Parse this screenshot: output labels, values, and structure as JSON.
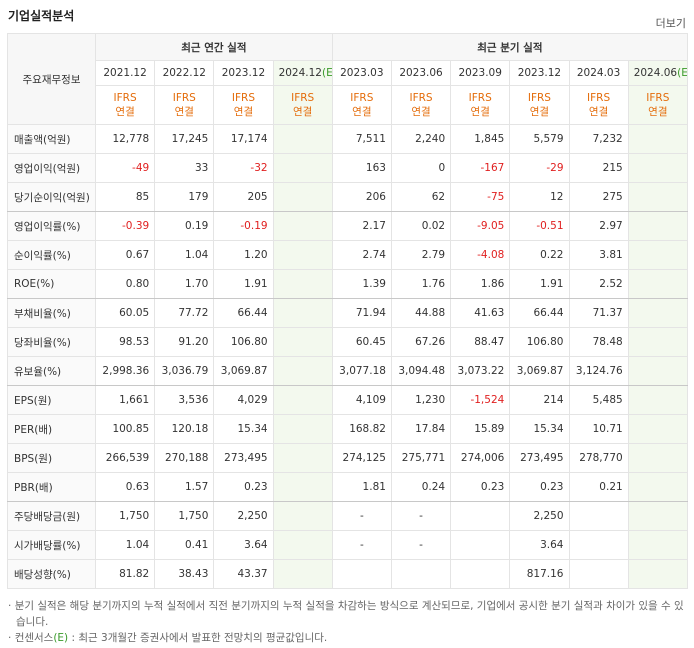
{
  "header": {
    "title": "기업실적분석",
    "more": "더보기"
  },
  "table": {
    "corner": "주요재무정보",
    "groups": [
      {
        "label": "최근 연간 실적",
        "span": 4
      },
      {
        "label": "최근 분기 실적",
        "span": 6
      }
    ],
    "estimate_mark": "(E)",
    "periods": [
      {
        "date": "2021.12"
      },
      {
        "date": "2022.12"
      },
      {
        "date": "2023.12"
      },
      {
        "date": "2024.12",
        "estimate": true
      },
      {
        "date": "2023.03"
      },
      {
        "date": "2023.06"
      },
      {
        "date": "2023.09"
      },
      {
        "date": "2023.12"
      },
      {
        "date": "2024.03"
      },
      {
        "date": "2024.06",
        "estimate": true
      }
    ],
    "basis": [
      "IFRS",
      "연결"
    ],
    "rows": [
      {
        "label": "매출액(억원)",
        "values": [
          "12,778",
          "17,245",
          "17,174",
          null,
          "7,511",
          "2,240",
          "1,845",
          "5,579",
          "7,232",
          null
        ]
      },
      {
        "label": "영업이익(억원)",
        "values": [
          "-49",
          "33",
          "-32",
          null,
          "163",
          "0",
          "-167",
          "-29",
          "215",
          null
        ]
      },
      {
        "label": "당기순이익(억원)",
        "values": [
          "85",
          "179",
          "205",
          null,
          "206",
          "62",
          "-75",
          "12",
          "275",
          null
        ]
      },
      {
        "label": "영업이익률(%)",
        "values": [
          "-0.39",
          "0.19",
          "-0.19",
          null,
          "2.17",
          "0.02",
          "-9.05",
          "-0.51",
          "2.97",
          null
        ]
      },
      {
        "label": "순이익률(%)",
        "values": [
          "0.67",
          "1.04",
          "1.20",
          null,
          "2.74",
          "2.79",
          "-4.08",
          "0.22",
          "3.81",
          null
        ]
      },
      {
        "label": "ROE(%)",
        "values": [
          "0.80",
          "1.70",
          "1.91",
          null,
          "1.39",
          "1.76",
          "1.86",
          "1.91",
          "2.52",
          null
        ]
      },
      {
        "label": "부채비율(%)",
        "values": [
          "60.05",
          "77.72",
          "66.44",
          null,
          "71.94",
          "44.88",
          "41.63",
          "66.44",
          "71.37",
          null
        ]
      },
      {
        "label": "당좌비율(%)",
        "values": [
          "98.53",
          "91.20",
          "106.80",
          null,
          "60.45",
          "67.26",
          "88.47",
          "106.80",
          "78.48",
          null
        ]
      },
      {
        "label": "유보율(%)",
        "values": [
          "2,998.36",
          "3,036.79",
          "3,069.87",
          null,
          "3,077.18",
          "3,094.48",
          "3,073.22",
          "3,069.87",
          "3,124.76",
          null
        ]
      },
      {
        "label": "EPS(원)",
        "values": [
          "1,661",
          "3,536",
          "4,029",
          null,
          "4,109",
          "1,230",
          "-1,524",
          "214",
          "5,485",
          null
        ]
      },
      {
        "label": "PER(배)",
        "values": [
          "100.85",
          "120.18",
          "15.34",
          null,
          "168.82",
          "17.84",
          "15.89",
          "15.34",
          "10.71",
          null
        ]
      },
      {
        "label": "BPS(원)",
        "values": [
          "266,539",
          "270,188",
          "273,495",
          null,
          "274,125",
          "275,771",
          "274,006",
          "273,495",
          "278,770",
          null
        ]
      },
      {
        "label": "PBR(배)",
        "values": [
          "0.63",
          "1.57",
          "0.23",
          null,
          "1.81",
          "0.24",
          "0.23",
          "0.23",
          "0.21",
          null
        ]
      },
      {
        "label": "주당배당금(원)",
        "values": [
          "1,750",
          "1,750",
          "2,250",
          null,
          "-",
          "-",
          null,
          "2,250",
          null,
          null
        ]
      },
      {
        "label": "시가배당률(%)",
        "values": [
          "1.04",
          "0.41",
          "3.64",
          null,
          "-",
          "-",
          null,
          "3.64",
          null,
          null
        ]
      },
      {
        "label": "배당성향(%)",
        "values": [
          "81.82",
          "38.43",
          "43.37",
          null,
          null,
          null,
          null,
          "817.16",
          null,
          null
        ]
      }
    ]
  },
  "notes": [
    "분기 실적은 해당 분기까지의 누적 실적에서 직전 분기까지의 누적 실적을 차감하는 방식으로 계산되므로, 기업에서 공시한 분기 실적과 차이가 있을 수 있습니다.",
    {
      "pre": "컨센서스",
      "mark": "(E)",
      "post": " : 최근 3개월간 증권사에서 발표한 전망치의 평균값입니다."
    }
  ]
}
